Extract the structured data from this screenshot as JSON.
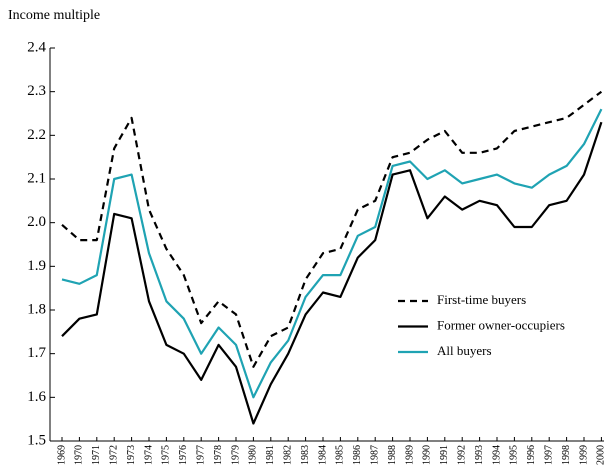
{
  "chart_data": {
    "type": "line",
    "y_label": "Income multiple",
    "categories": [
      "1969",
      "1970",
      "1971",
      "1972",
      "1973",
      "1974",
      "1975",
      "1976",
      "1977",
      "1978",
      "1979",
      "1980",
      "1981",
      "1982",
      "1983",
      "1984",
      "1985",
      "1986",
      "1987",
      "1988",
      "1989",
      "1990",
      "1991",
      "1992",
      "1993",
      "1994",
      "1995",
      "1996",
      "1997",
      "1998",
      "1999",
      "2000"
    ],
    "series": [
      {
        "name": "First-time buyers",
        "color": "#000000",
        "dashed": true,
        "values": [
          1.995,
          1.96,
          1.96,
          2.17,
          2.24,
          2.03,
          1.94,
          1.88,
          1.77,
          1.82,
          1.79,
          1.67,
          1.74,
          1.76,
          1.87,
          1.93,
          1.94,
          2.03,
          2.05,
          2.15,
          2.16,
          2.19,
          2.21,
          2.16,
          2.16,
          2.17,
          2.21,
          2.22,
          2.23,
          2.24,
          2.27,
          2.3
        ]
      },
      {
        "name": "Former owner-occupiers",
        "color": "#000000",
        "dashed": false,
        "values": [
          1.74,
          1.78,
          1.79,
          2.02,
          2.01,
          1.82,
          1.72,
          1.7,
          1.64,
          1.72,
          1.67,
          1.54,
          1.63,
          1.7,
          1.79,
          1.84,
          1.83,
          1.92,
          1.96,
          2.11,
          2.12,
          2.01,
          2.06,
          2.03,
          2.05,
          2.04,
          1.99,
          1.99,
          2.04,
          2.05,
          2.11,
          2.23
        ]
      },
      {
        "name": "All buyers",
        "color": "#1fa3b3",
        "dashed": false,
        "values": [
          1.87,
          1.86,
          1.88,
          2.1,
          2.11,
          1.93,
          1.82,
          1.78,
          1.7,
          1.76,
          1.72,
          1.6,
          1.68,
          1.73,
          1.83,
          1.88,
          1.88,
          1.97,
          1.99,
          2.13,
          2.14,
          2.1,
          2.12,
          2.09,
          2.1,
          2.11,
          2.09,
          2.08,
          2.11,
          2.13,
          2.18,
          2.26
        ]
      }
    ],
    "ylim": [
      1.5,
      2.4
    ],
    "yticks": [
      1.5,
      1.6,
      1.7,
      1.8,
      1.9,
      {
        "value": 2,
        "label": "2.0"
      },
      2.1,
      2.2,
      2.3,
      2.4
    ],
    "grid": false
  }
}
